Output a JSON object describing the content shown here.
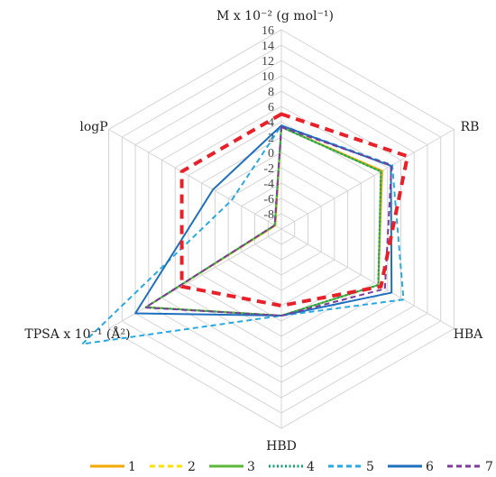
{
  "chart_data": {
    "type": "radar",
    "axes": [
      "M x 10⁻² (g mol⁻¹)",
      "RB",
      "HBA",
      "HBD",
      "TPSA x 10⁻¹ (Å²)",
      "logP"
    ],
    "r_ticks": [
      "16",
      "14",
      "12",
      "10",
      "8",
      "6",
      "4",
      "2",
      "0",
      "-2",
      "-4",
      "-6",
      "-8"
    ],
    "rlim": [
      -10,
      16
    ],
    "grid": true,
    "legend_position": "bottom",
    "series": [
      {
        "name": "1",
        "color": "#f2a900",
        "dash": "solid",
        "values": [
          3.3,
          5.2,
          4.6,
          1.3,
          10.4,
          -9.1
        ]
      },
      {
        "name": "2",
        "color": "#ffe000",
        "dash": "dash",
        "values": [
          3.3,
          5.0,
          4.6,
          1.3,
          10.4,
          -9.0
        ]
      },
      {
        "name": "3",
        "color": "#5cb83a",
        "dash": "solid",
        "values": [
          3.3,
          5.0,
          4.6,
          1.3,
          10.4,
          -9.0
        ]
      },
      {
        "name": "4",
        "color": "#0f9f6a",
        "dash": "dot",
        "values": [
          3.3,
          5.0,
          4.6,
          1.3,
          10.4,
          -9.0
        ]
      },
      {
        "name": "5",
        "color": "#2aa9e0",
        "dash": "dash",
        "values": [
          3.5,
          6.7,
          8.4,
          1.3,
          20.0,
          -2.5
        ]
      },
      {
        "name": "6",
        "color": "#1f6fbf",
        "dash": "solid",
        "values": [
          3.5,
          6.5,
          6.6,
          1.3,
          12.0,
          0.3
        ]
      },
      {
        "name": "7",
        "color": "#7d3c98",
        "dash": "dash",
        "values": [
          3.3,
          6.6,
          5.6,
          1.3,
          10.5,
          -9.0
        ]
      },
      {
        "name": "",
        "color": "#e8202a",
        "dash": "dash-thick",
        "values": [
          5.0,
          9.0,
          5.0,
          0.0,
          5.0,
          5.0
        ]
      }
    ]
  }
}
